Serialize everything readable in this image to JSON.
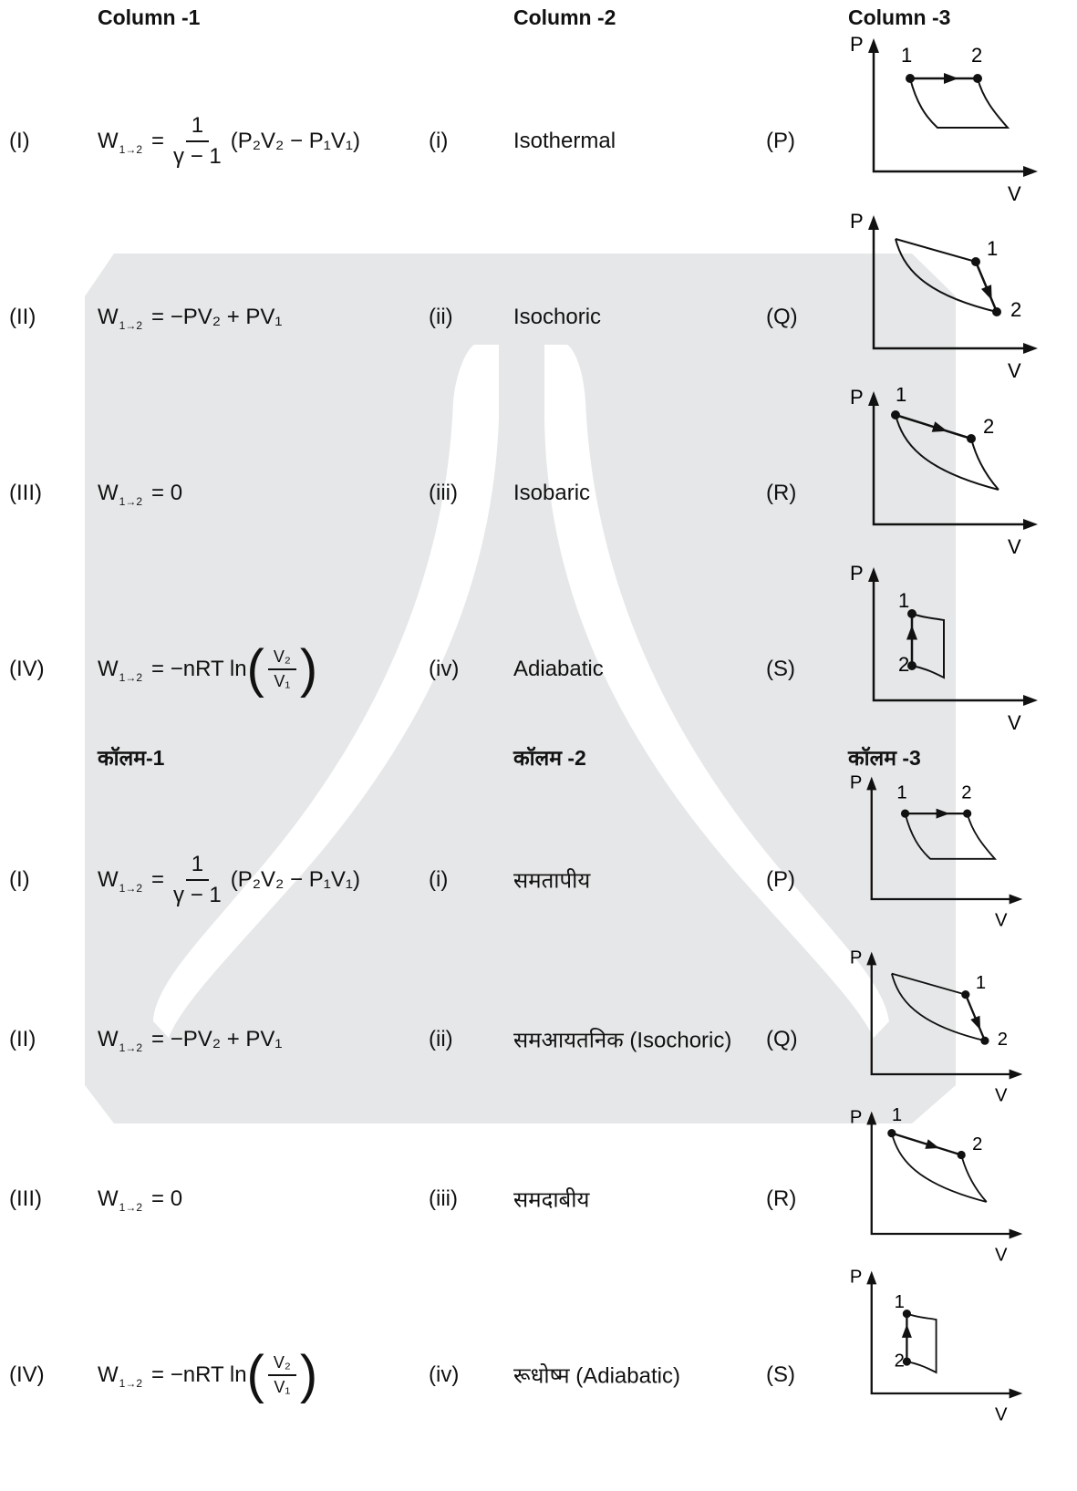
{
  "sections": [
    {
      "headers": [
        "Column -1",
        "Column -2",
        "Column -3"
      ],
      "rows": [
        {
          "label": "(I)",
          "formula": {
            "w": "W",
            "sub": "1→2",
            "expr": "=",
            "num": "1",
            "den": "γ − 1",
            "tail": "(P₂V₂ − P₁V₁)"
          },
          "roman": "(i)",
          "process": "Isothermal",
          "letter": "(P)",
          "graph": {
            "y_label": "P",
            "x_label": "V",
            "point_labels": [
              "1",
              "2"
            ]
          }
        },
        {
          "label": "(II)",
          "formula": {
            "w": "W",
            "sub": "1→2",
            "expr": "= −PV₂ + PV₁"
          },
          "roman": "(ii)",
          "process": "Isochoric",
          "letter": "(Q)",
          "graph": {
            "y_label": "P",
            "x_label": "V",
            "point_labels": [
              "1",
              "2"
            ]
          }
        },
        {
          "label": "(III)",
          "formula": {
            "w": "W",
            "sub": "1→2",
            "expr": "= 0"
          },
          "roman": "(iii)",
          "process": "Isobaric",
          "letter": "(R)",
          "graph": {
            "y_label": "P",
            "x_label": "V",
            "point_labels": [
              "1",
              "2"
            ]
          }
        },
        {
          "label": "(IV)",
          "formula": {
            "w": "W",
            "sub": "1→2",
            "expr": "= −nRT ln",
            "open": "(",
            "num": "V₂",
            "den": "V₁",
            "tail": ")"
          },
          "roman": "(iv)",
          "process": "Adiabatic",
          "letter": "(S)",
          "graph": {
            "y_label": "P",
            "x_label": "V",
            "point_labels": [
              "1",
              "2"
            ]
          }
        }
      ]
    },
    {
      "headers": [
        "कॉलम-1",
        "कॉलम -2",
        "कॉलम -3"
      ],
      "rows": [
        {
          "label": "(I)",
          "formula": {
            "w": "W",
            "sub": "1→2",
            "expr": "=",
            "num": "1",
            "den": "γ − 1",
            "tail": "(P₂V₂ − P₁V₁)"
          },
          "roman": "(i)",
          "process": "समतापीय",
          "letter": "(P)",
          "graph": {
            "y_label": "P",
            "x_label": "V",
            "point_labels": [
              "1",
              "2"
            ]
          }
        },
        {
          "label": "(II)",
          "formula": {
            "w": "W",
            "sub": "1→2",
            "expr": "= −PV₂ + PV₁"
          },
          "roman": "(ii)",
          "process": "समआयतनिक (Isochoric)",
          "letter": "(Q)",
          "graph": {
            "y_label": "P",
            "x_label": "V",
            "point_labels": [
              "1",
              "2"
            ]
          }
        },
        {
          "label": "(III)",
          "formula": {
            "w": "W",
            "sub": "1→2",
            "expr": "= 0"
          },
          "roman": "(iii)",
          "process": "समदाबीय",
          "letter": "(R)",
          "graph": {
            "y_label": "P",
            "x_label": "V",
            "point_labels": [
              "1",
              "2"
            ]
          }
        },
        {
          "label": "(IV)",
          "formula": {
            "w": "W",
            "sub": "1→2",
            "expr": "= −nRT ln",
            "open": "(",
            "num": "V₂",
            "den": "V₁",
            "tail": ")"
          },
          "roman": "(iv)",
          "process": "रूधोष्म (Adiabatic)",
          "letter": "(S)",
          "graph": {
            "y_label": "P",
            "x_label": "V",
            "point_labels": [
              "1",
              "2"
            ]
          }
        }
      ]
    }
  ]
}
